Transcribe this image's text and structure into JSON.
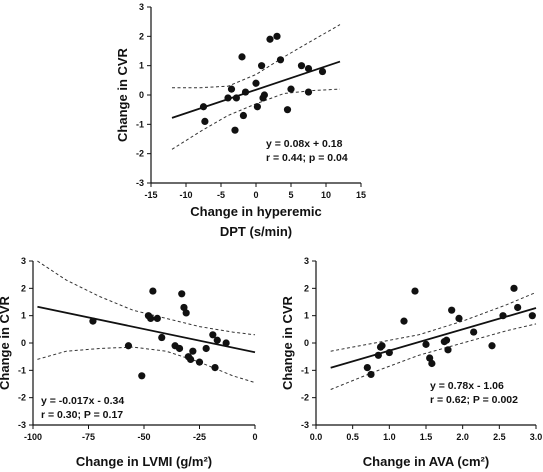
{
  "chart_data": [
    {
      "type": "scatter",
      "xlabel_lines": [
        "Change in hyperemic",
        "DPT (s/min)"
      ],
      "ylabel": "Change in CVR",
      "xlim": [
        -15,
        15
      ],
      "ylim": [
        -3,
        3
      ],
      "xticks": [
        -15,
        -10,
        -5,
        0,
        5,
        10,
        15
      ],
      "yticks": [
        -3,
        -2,
        -1,
        0,
        1,
        2,
        3
      ],
      "points": [
        {
          "x": -7.5,
          "y": -0.4
        },
        {
          "x": -7.3,
          "y": -0.9
        },
        {
          "x": -4.0,
          "y": -0.1
        },
        {
          "x": -3.5,
          "y": 0.2
        },
        {
          "x": -3.0,
          "y": -1.2
        },
        {
          "x": -2.8,
          "y": -0.1
        },
        {
          "x": -2.0,
          "y": 1.3
        },
        {
          "x": -1.8,
          "y": -0.7
        },
        {
          "x": -1.5,
          "y": 0.1
        },
        {
          "x": 0.0,
          "y": 0.4
        },
        {
          "x": 0.2,
          "y": -0.4
        },
        {
          "x": 0.8,
          "y": 1.0
        },
        {
          "x": 1.0,
          "y": -0.1
        },
        {
          "x": 1.2,
          "y": 0.0
        },
        {
          "x": 2.0,
          "y": 1.9
        },
        {
          "x": 3.0,
          "y": 2.0
        },
        {
          "x": 3.5,
          "y": 1.2
        },
        {
          "x": 4.5,
          "y": -0.5
        },
        {
          "x": 5.0,
          "y": 0.2
        },
        {
          "x": 6.5,
          "y": 1.0
        },
        {
          "x": 7.5,
          "y": 0.9
        },
        {
          "x": 7.5,
          "y": 0.1
        },
        {
          "x": 9.5,
          "y": 0.8
        }
      ],
      "fit": {
        "slope": 0.08,
        "intercept": 0.18,
        "x_range": [
          -12,
          12
        ]
      },
      "ci_upper": [
        {
          "x": -12,
          "y": 0.25
        },
        {
          "x": -8,
          "y": 0.25
        },
        {
          "x": -4,
          "y": 0.3
        },
        {
          "x": 0,
          "y": 0.7
        },
        {
          "x": 4,
          "y": 1.3
        },
        {
          "x": 8,
          "y": 1.85
        },
        {
          "x": 12,
          "y": 2.4
        }
      ],
      "ci_lower": [
        {
          "x": -12,
          "y": -1.85
        },
        {
          "x": -8,
          "y": -1.25
        },
        {
          "x": -4,
          "y": -0.7
        },
        {
          "x": 0,
          "y": -0.3
        },
        {
          "x": 4,
          "y": 0.05
        },
        {
          "x": 8,
          "y": 0.15
        },
        {
          "x": 12,
          "y": 0.2
        }
      ],
      "annotation": [
        "y = 0.08x + 0.18",
        "r = 0.44; p = 0.04"
      ]
    },
    {
      "type": "scatter",
      "xlabel": "Change in LVMI (g/m²)",
      "ylabel": "Change in CVR",
      "xlim": [
        -100,
        0
      ],
      "ylim": [
        -3,
        3
      ],
      "xticks": [
        -100,
        -75,
        -50,
        -25,
        0
      ],
      "yticks": [
        -3,
        -2,
        -1,
        0,
        1,
        2,
        3
      ],
      "points": [
        {
          "x": -73,
          "y": 0.8
        },
        {
          "x": -57,
          "y": -0.1
        },
        {
          "x": -51,
          "y": -1.2
        },
        {
          "x": -48,
          "y": 1.0
        },
        {
          "x": -47,
          "y": 0.9
        },
        {
          "x": -46,
          "y": 1.9
        },
        {
          "x": -44,
          "y": 0.9
        },
        {
          "x": -42,
          "y": 0.2
        },
        {
          "x": -36,
          "y": -0.1
        },
        {
          "x": -34,
          "y": -0.2
        },
        {
          "x": -33,
          "y": 1.8
        },
        {
          "x": -32,
          "y": 1.3
        },
        {
          "x": -31,
          "y": 1.1
        },
        {
          "x": -30,
          "y": -0.5
        },
        {
          "x": -29,
          "y": -0.6
        },
        {
          "x": -28,
          "y": -0.3
        },
        {
          "x": -25,
          "y": -0.7
        },
        {
          "x": -22,
          "y": -0.2
        },
        {
          "x": -19,
          "y": 0.3
        },
        {
          "x": -18,
          "y": -0.9
        },
        {
          "x": -17,
          "y": 0.1
        },
        {
          "x": -13,
          "y": 0.0
        }
      ],
      "fit": {
        "slope": -0.017,
        "intercept": -0.34,
        "x_range": [
          -98,
          0
        ]
      },
      "ci_upper": [
        {
          "x": -98,
          "y": 3.0
        },
        {
          "x": -85,
          "y": 2.3
        },
        {
          "x": -70,
          "y": 1.7
        },
        {
          "x": -55,
          "y": 1.2
        },
        {
          "x": -40,
          "y": 0.9
        },
        {
          "x": -25,
          "y": 0.6
        },
        {
          "x": -10,
          "y": 0.4
        },
        {
          "x": 0,
          "y": 0.3
        }
      ],
      "ci_lower": [
        {
          "x": -98,
          "y": -0.6
        },
        {
          "x": -85,
          "y": -0.3
        },
        {
          "x": -70,
          "y": -0.2
        },
        {
          "x": -55,
          "y": -0.15
        },
        {
          "x": -40,
          "y": -0.3
        },
        {
          "x": -25,
          "y": -0.7
        },
        {
          "x": -10,
          "y": -1.2
        },
        {
          "x": 0,
          "y": -1.45
        }
      ],
      "annotation": [
        "y = -0.017x - 0.34",
        "r = 0.30; P = 0.17"
      ]
    },
    {
      "type": "scatter",
      "xlabel": "Change in AVA (cm²)",
      "ylabel": "Change in CVR",
      "xlim": [
        0,
        3
      ],
      "ylim": [
        -3,
        3
      ],
      "xticks": [
        "0.0",
        "0.5",
        "1.0",
        "1.5",
        "2.0",
        "2.5",
        "3.0"
      ],
      "yticks": [
        -3,
        -2,
        -1,
        0,
        1,
        2,
        3
      ],
      "points": [
        {
          "x": 0.7,
          "y": -0.9
        },
        {
          "x": 0.75,
          "y": -1.15
        },
        {
          "x": 0.85,
          "y": -0.45
        },
        {
          "x": 0.88,
          "y": -0.15
        },
        {
          "x": 0.9,
          "y": -0.1
        },
        {
          "x": 1.0,
          "y": -0.35
        },
        {
          "x": 1.2,
          "y": 0.8
        },
        {
          "x": 1.35,
          "y": 1.9
        },
        {
          "x": 1.5,
          "y": -0.05
        },
        {
          "x": 1.55,
          "y": -0.55
        },
        {
          "x": 1.58,
          "y": -0.75
        },
        {
          "x": 1.75,
          "y": 0.05
        },
        {
          "x": 1.78,
          "y": 0.1
        },
        {
          "x": 1.8,
          "y": -0.25
        },
        {
          "x": 1.85,
          "y": 1.2
        },
        {
          "x": 1.95,
          "y": 0.9
        },
        {
          "x": 2.15,
          "y": 0.4
        },
        {
          "x": 2.4,
          "y": -0.1
        },
        {
          "x": 2.55,
          "y": 1.0
        },
        {
          "x": 2.7,
          "y": 2.0
        },
        {
          "x": 2.75,
          "y": 1.3
        },
        {
          "x": 2.95,
          "y": 1.0
        }
      ],
      "fit": {
        "slope": 0.78,
        "intercept": -1.06,
        "x_range": [
          0.2,
          3.0
        ]
      },
      "ci_upper": [
        {
          "x": 0.2,
          "y": -0.3
        },
        {
          "x": 0.8,
          "y": 0.0
        },
        {
          "x": 1.4,
          "y": 0.3
        },
        {
          "x": 2.0,
          "y": 0.8
        },
        {
          "x": 2.6,
          "y": 1.4
        },
        {
          "x": 3.0,
          "y": 1.85
        }
      ],
      "ci_lower": [
        {
          "x": 0.2,
          "y": -1.7
        },
        {
          "x": 0.8,
          "y": -1.05
        },
        {
          "x": 1.4,
          "y": -0.45
        },
        {
          "x": 2.0,
          "y": 0.0
        },
        {
          "x": 2.6,
          "y": 0.45
        },
        {
          "x": 3.0,
          "y": 0.7
        }
      ],
      "annotation": [
        "y = 0.78x - 1.06",
        "r = 0.62; P = 0.002"
      ]
    }
  ]
}
